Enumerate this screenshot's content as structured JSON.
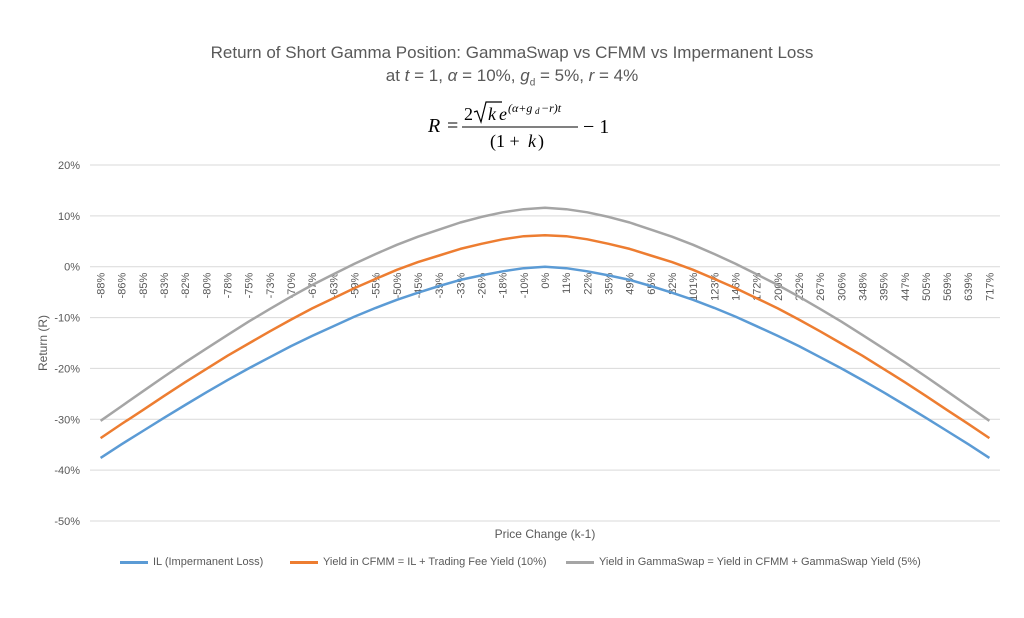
{
  "title_line1": "Return of Short Gamma Position: GammaSwap vs CFMM vs Impermanent Loss",
  "title_line2": "at t = 1, α = 10%, gd = 5%, r = 4%",
  "formula": "R = 2√k e^((α+gd−r)t) / (1 + k) − 1",
  "chart_data": {
    "type": "line",
    "xlabel": "Price Change (k-1)",
    "ylabel": "Return (R)",
    "ylim": [
      -50,
      20
    ],
    "yticks": [
      20,
      10,
      0,
      -10,
      -20,
      -30,
      -40,
      -50
    ],
    "ytick_labels": [
      "20%",
      "10%",
      "0%",
      "-10%",
      "-20%",
      "-30%",
      "-40%",
      "-50%"
    ],
    "categories": [
      "-88%",
      "-86%",
      "-85%",
      "-83%",
      "-82%",
      "-80%",
      "-78%",
      "-75%",
      "-73%",
      "-70%",
      "-67%",
      "-63%",
      "-59%",
      "-55%",
      "-50%",
      "-45%",
      "-39%",
      "-33%",
      "-26%",
      "-18%",
      "-10%",
      "0%",
      "11%",
      "22%",
      "35%",
      "49%",
      "65%",
      "82%",
      "101%",
      "123%",
      "146%",
      "172%",
      "200%",
      "232%",
      "267%",
      "306%",
      "348%",
      "395%",
      "447%",
      "505%",
      "569%",
      "639%",
      "717%"
    ],
    "series": [
      {
        "name": "IL (Impermanent Loss)",
        "color": "#5b9bd5",
        "values": [
          -37.6,
          -34.9,
          -32.3,
          -29.7,
          -27.2,
          -24.7,
          -22.3,
          -20.0,
          -17.8,
          -15.6,
          -13.6,
          -11.7,
          -9.8,
          -8.1,
          -6.5,
          -5.1,
          -3.8,
          -2.6,
          -1.7,
          -0.9,
          -0.3,
          0.0,
          -0.3,
          -0.9,
          -1.7,
          -2.6,
          -3.8,
          -5.1,
          -6.5,
          -8.1,
          -9.8,
          -11.7,
          -13.6,
          -15.6,
          -17.8,
          -20.0,
          -22.3,
          -24.7,
          -27.2,
          -29.7,
          -32.3,
          -34.9,
          -37.6
        ]
      },
      {
        "name": "Yield in CFMM = IL + Trading Fee Yield (10%)",
        "color": "#ed7d31",
        "values": [
          -33.7,
          -30.9,
          -28.2,
          -25.4,
          -22.7,
          -20.1,
          -17.5,
          -15.1,
          -12.7,
          -10.4,
          -8.2,
          -6.2,
          -4.2,
          -2.4,
          -0.6,
          0.9,
          2.2,
          3.5,
          4.5,
          5.4,
          6.0,
          6.2,
          6.0,
          5.4,
          4.5,
          3.5,
          2.2,
          0.9,
          -0.6,
          -2.4,
          -4.2,
          -6.2,
          -8.2,
          -10.4,
          -12.7,
          -15.1,
          -17.5,
          -20.1,
          -22.7,
          -25.4,
          -28.2,
          -30.9,
          -33.7
        ]
      },
      {
        "name": "Yield in GammaSwap = Yield in CFMM + GammaSwap Yield (5%)",
        "color": "#a5a5a5",
        "values": [
          -30.3,
          -27.4,
          -24.5,
          -21.6,
          -18.8,
          -16.1,
          -13.4,
          -10.8,
          -8.3,
          -5.9,
          -3.6,
          -1.5,
          0.6,
          2.5,
          4.3,
          5.9,
          7.3,
          8.7,
          9.8,
          10.7,
          11.3,
          11.6,
          11.3,
          10.7,
          9.8,
          8.7,
          7.3,
          5.9,
          4.3,
          2.5,
          0.6,
          -1.5,
          -3.6,
          -5.9,
          -8.3,
          -10.8,
          -13.4,
          -16.1,
          -18.8,
          -21.6,
          -24.5,
          -27.4,
          -30.3
        ]
      }
    ],
    "grid": true,
    "legend": "bottom"
  }
}
